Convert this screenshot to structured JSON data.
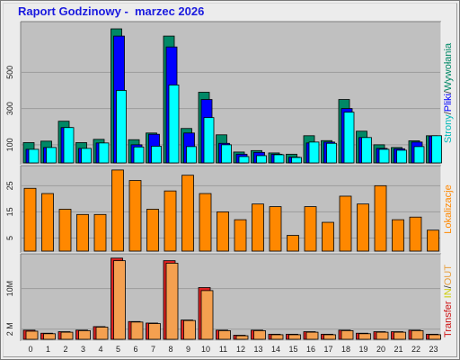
{
  "title": "Raport Godzinowy -  marzec 2026",
  "colors": {
    "background": "#ececec",
    "panel": "#c0c0c0",
    "strony": "#008866",
    "pliki": "#0000ff",
    "wywolania": "#00ffff",
    "lokalizacje": "#ff8800",
    "in": "#ffff00",
    "out": "#ffaa44",
    "transfer_out": "#dd2222",
    "transfer_in": "#f4a050"
  },
  "chart_data": [
    {
      "type": "bar",
      "name": "hits",
      "categories": [
        "0",
        "1",
        "2",
        "3",
        "4",
        "5",
        "6",
        "7",
        "8",
        "9",
        "10",
        "11",
        "12",
        "13",
        "14",
        "15",
        "16",
        "17",
        "18",
        "19",
        "20",
        "21",
        "22",
        "23"
      ],
      "series": [
        {
          "name": "Strony",
          "values": [
            112,
            120,
            230,
            112,
            130,
            740,
            128,
            165,
            700,
            190,
            390,
            155,
            60,
            68,
            55,
            48,
            150,
            123,
            350,
            175,
            100,
            85,
            122,
            150
          ]
        },
        {
          "name": "Pliki",
          "values": [
            75,
            85,
            195,
            80,
            110,
            700,
            100,
            158,
            640,
            165,
            350,
            108,
            48,
            58,
            48,
            32,
            110,
            115,
            300,
            140,
            80,
            78,
            115,
            148
          ]
        },
        {
          "name": "Wywołania",
          "values": [
            75,
            85,
            195,
            80,
            110,
            400,
            88,
            92,
            430,
            90,
            250,
            100,
            35,
            40,
            45,
            30,
            115,
            108,
            280,
            140,
            75,
            70,
            90,
            150
          ]
        }
      ],
      "yticks": [
        "100",
        "300",
        "500"
      ],
      "ytick_values": [
        100,
        300,
        500
      ],
      "ylim": [
        0,
        770
      ],
      "side_labels": [
        "Strony",
        "Pliki",
        "Wywołania"
      ]
    },
    {
      "type": "bar",
      "name": "locations",
      "categories": [
        "0",
        "1",
        "2",
        "3",
        "4",
        "5",
        "6",
        "7",
        "8",
        "9",
        "10",
        "11",
        "12",
        "13",
        "14",
        "15",
        "16",
        "17",
        "18",
        "19",
        "20",
        "21",
        "22",
        "23"
      ],
      "series": [
        {
          "name": "Lokalizacje",
          "values": [
            24,
            22,
            16,
            14,
            14,
            31,
            27,
            16,
            23,
            29,
            22,
            15,
            12,
            18,
            17,
            6,
            17,
            11,
            21,
            18,
            25,
            12,
            13,
            8
          ]
        }
      ],
      "yticks": [
        "5",
        "15",
        "25"
      ],
      "ytick_values": [
        5,
        15,
        25
      ],
      "ylim": [
        0,
        32
      ],
      "side_labels": [
        "Lokalizacje"
      ]
    },
    {
      "type": "bar",
      "name": "transfer",
      "categories": [
        "0",
        "1",
        "2",
        "3",
        "4",
        "5",
        "6",
        "7",
        "8",
        "9",
        "10",
        "11",
        "12",
        "13",
        "14",
        "15",
        "16",
        "17",
        "18",
        "19",
        "20",
        "21",
        "22",
        "23"
      ],
      "series": [
        {
          "name": "Transfer",
          "values": [
            1.8,
            1.2,
            1.5,
            1.8,
            2.5,
            16.0,
            3.5,
            3.2,
            15.5,
            3.8,
            10.2,
            1.8,
            0.8,
            1.8,
            1.0,
            1.0,
            1.5,
            1.0,
            1.8,
            1.2,
            1.5,
            1.5,
            1.8,
            1.0
          ]
        },
        {
          "name": "IN",
          "values": [
            0,
            0,
            0,
            0,
            0,
            0,
            0,
            0,
            0,
            0,
            0,
            0,
            0,
            0,
            0,
            0,
            0,
            0,
            0,
            0,
            0,
            0,
            0,
            0
          ]
        },
        {
          "name": "OUT",
          "values": [
            1.6,
            1.1,
            1.4,
            1.7,
            2.4,
            15.5,
            3.4,
            3.1,
            15.0,
            3.7,
            9.6,
            1.7,
            0.7,
            1.7,
            0.9,
            0.9,
            1.4,
            0.9,
            1.7,
            1.1,
            1.4,
            1.4,
            1.7,
            0.9
          ]
        }
      ],
      "yticks": [
        "2 M",
        "10M"
      ],
      "ytick_values": [
        2,
        10
      ],
      "ylim": [
        0,
        16.5
      ],
      "side_labels": [
        "Transfer",
        "IN",
        "OUT"
      ]
    }
  ],
  "x_labels": [
    "0",
    "1",
    "2",
    "3",
    "4",
    "5",
    "6",
    "7",
    "8",
    "9",
    "10",
    "11",
    "12",
    "13",
    "14",
    "15",
    "16",
    "17",
    "18",
    "19",
    "20",
    "21",
    "22",
    "23"
  ]
}
